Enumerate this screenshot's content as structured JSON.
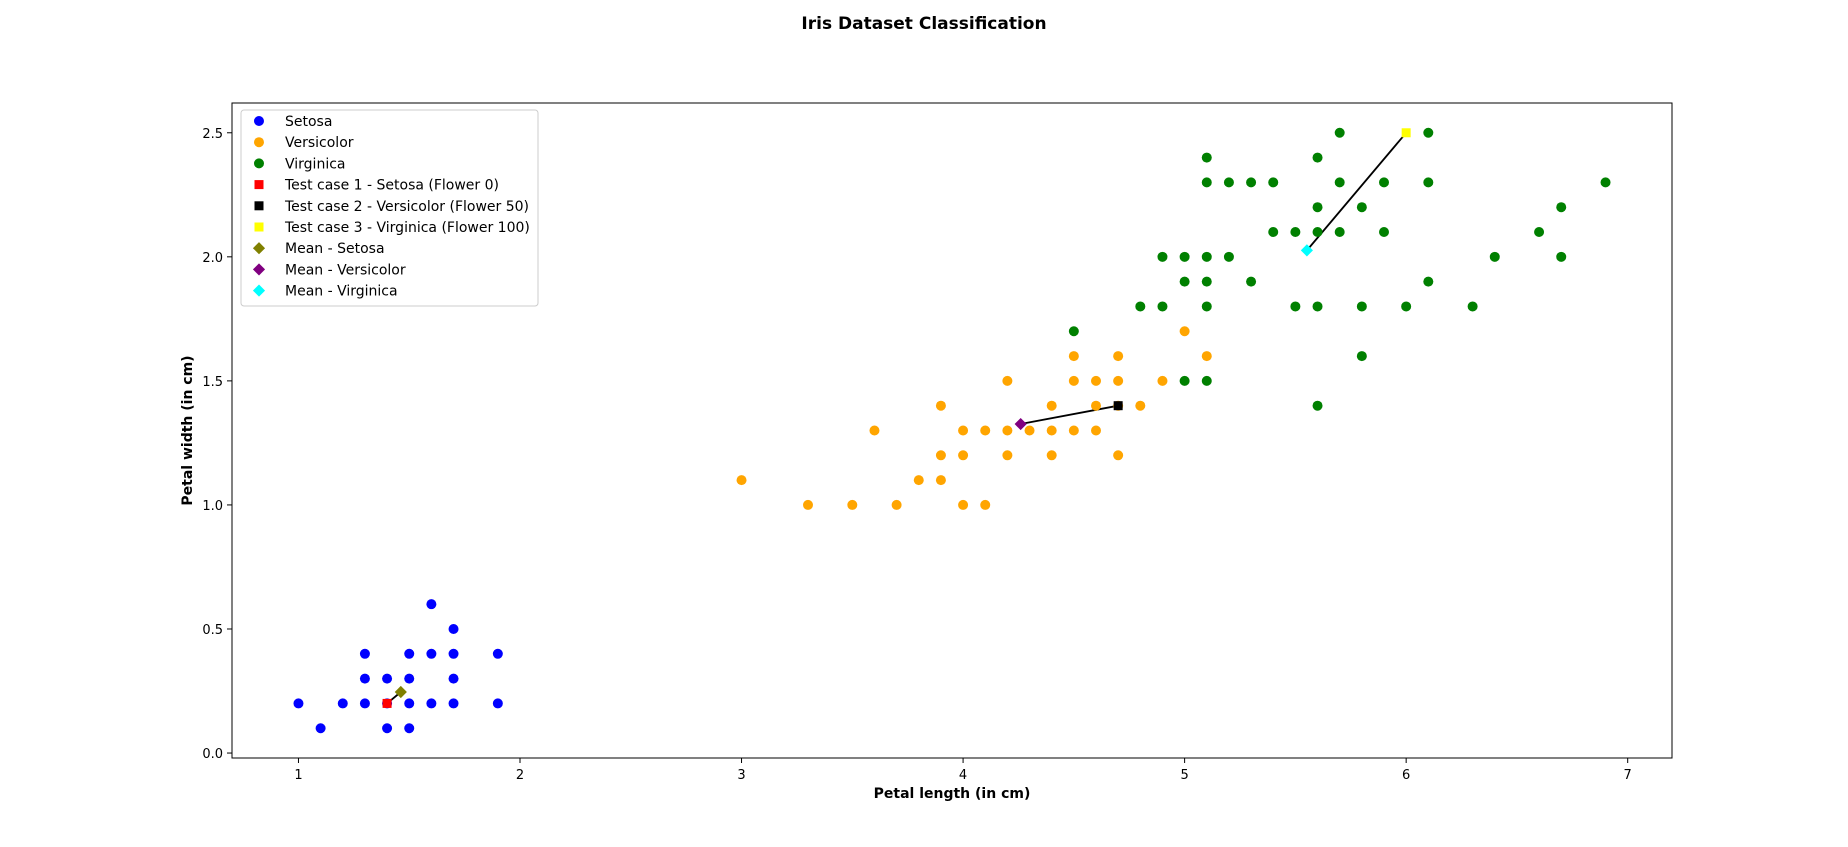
{
  "chart_data": {
    "type": "scatter",
    "title": "Iris Dataset Classification",
    "xlabel": "Petal length (in cm)",
    "ylabel": "Petal width (in cm)",
    "xlim": [
      0.7,
      7.2
    ],
    "ylim": [
      -0.02,
      2.62
    ],
    "xticks": [
      1,
      2,
      3,
      4,
      5,
      6,
      7
    ],
    "yticks": [
      0.0,
      0.5,
      1.0,
      1.5,
      2.0,
      2.5
    ],
    "grid": false,
    "legend_position": "top-left",
    "series": [
      {
        "name": "Setosa",
        "color": "#0000ff",
        "marker": "circle",
        "points": [
          [
            1.0,
            0.2
          ],
          [
            1.1,
            0.1
          ],
          [
            1.2,
            0.2
          ],
          [
            1.3,
            0.2
          ],
          [
            1.3,
            0.3
          ],
          [
            1.3,
            0.4
          ],
          [
            1.4,
            0.1
          ],
          [
            1.4,
            0.2
          ],
          [
            1.4,
            0.3
          ],
          [
            1.5,
            0.1
          ],
          [
            1.5,
            0.2
          ],
          [
            1.5,
            0.3
          ],
          [
            1.5,
            0.4
          ],
          [
            1.6,
            0.2
          ],
          [
            1.6,
            0.4
          ],
          [
            1.6,
            0.6
          ],
          [
            1.7,
            0.2
          ],
          [
            1.7,
            0.3
          ],
          [
            1.7,
            0.4
          ],
          [
            1.7,
            0.5
          ],
          [
            1.9,
            0.2
          ],
          [
            1.9,
            0.4
          ]
        ]
      },
      {
        "name": "Versicolor",
        "color": "#ffa500",
        "marker": "circle",
        "points": [
          [
            3.0,
            1.1
          ],
          [
            3.3,
            1.0
          ],
          [
            3.5,
            1.0
          ],
          [
            3.6,
            1.3
          ],
          [
            3.7,
            1.0
          ],
          [
            3.8,
            1.1
          ],
          [
            3.9,
            1.1
          ],
          [
            3.9,
            1.2
          ],
          [
            3.9,
            1.4
          ],
          [
            4.0,
            1.0
          ],
          [
            4.0,
            1.2
          ],
          [
            4.0,
            1.3
          ],
          [
            4.1,
            1.0
          ],
          [
            4.1,
            1.3
          ],
          [
            4.2,
            1.2
          ],
          [
            4.2,
            1.3
          ],
          [
            4.2,
            1.5
          ],
          [
            4.3,
            1.3
          ],
          [
            4.4,
            1.2
          ],
          [
            4.4,
            1.3
          ],
          [
            4.4,
            1.4
          ],
          [
            4.5,
            1.3
          ],
          [
            4.5,
            1.5
          ],
          [
            4.5,
            1.6
          ],
          [
            4.6,
            1.3
          ],
          [
            4.6,
            1.4
          ],
          [
            4.6,
            1.5
          ],
          [
            4.7,
            1.2
          ],
          [
            4.7,
            1.4
          ],
          [
            4.7,
            1.5
          ],
          [
            4.7,
            1.6
          ],
          [
            4.8,
            1.4
          ],
          [
            4.9,
            1.5
          ],
          [
            5.0,
            1.7
          ],
          [
            5.1,
            1.6
          ]
        ]
      },
      {
        "name": "Virginica",
        "color": "#008000",
        "marker": "circle",
        "points": [
          [
            4.5,
            1.7
          ],
          [
            4.8,
            1.8
          ],
          [
            4.9,
            1.8
          ],
          [
            4.9,
            2.0
          ],
          [
            5.0,
            1.5
          ],
          [
            5.0,
            1.9
          ],
          [
            5.0,
            2.0
          ],
          [
            5.1,
            1.5
          ],
          [
            5.1,
            1.8
          ],
          [
            5.1,
            1.9
          ],
          [
            5.1,
            2.0
          ],
          [
            5.1,
            2.3
          ],
          [
            5.1,
            2.4
          ],
          [
            5.2,
            2.0
          ],
          [
            5.2,
            2.3
          ],
          [
            5.3,
            1.9
          ],
          [
            5.3,
            2.3
          ],
          [
            5.4,
            2.1
          ],
          [
            5.4,
            2.3
          ],
          [
            5.5,
            1.8
          ],
          [
            5.5,
            2.1
          ],
          [
            5.6,
            1.4
          ],
          [
            5.6,
            1.8
          ],
          [
            5.6,
            2.1
          ],
          [
            5.6,
            2.2
          ],
          [
            5.6,
            2.4
          ],
          [
            5.7,
            2.1
          ],
          [
            5.7,
            2.3
          ],
          [
            5.7,
            2.5
          ],
          [
            5.8,
            1.6
          ],
          [
            5.8,
            1.8
          ],
          [
            5.8,
            2.2
          ],
          [
            5.9,
            2.1
          ],
          [
            5.9,
            2.3
          ],
          [
            6.0,
            1.8
          ],
          [
            6.1,
            1.9
          ],
          [
            6.1,
            2.3
          ],
          [
            6.1,
            2.5
          ],
          [
            6.3,
            1.8
          ],
          [
            6.4,
            2.0
          ],
          [
            6.6,
            2.1
          ],
          [
            6.7,
            2.0
          ],
          [
            6.7,
            2.2
          ],
          [
            6.9,
            2.3
          ]
        ]
      },
      {
        "name": "Test case 1 - Setosa (Flower 0)",
        "color": "#ff0000",
        "marker": "square",
        "points": [
          [
            1.4,
            0.2
          ]
        ]
      },
      {
        "name": "Test case 2 - Versicolor (Flower 50)",
        "color": "#000000",
        "marker": "square",
        "points": [
          [
            4.7,
            1.4
          ]
        ]
      },
      {
        "name": "Test case 3 - Virginica (Flower 100)",
        "color": "#ffff00",
        "marker": "square",
        "points": [
          [
            6.0,
            2.5
          ]
        ]
      },
      {
        "name": "Mean - Setosa",
        "color": "#808000",
        "marker": "diamond",
        "points": [
          [
            1.462,
            0.246
          ]
        ]
      },
      {
        "name": "Mean - Versicolor",
        "color": "#800080",
        "marker": "diamond",
        "points": [
          [
            4.26,
            1.326
          ]
        ]
      },
      {
        "name": "Mean - Virginica",
        "color": "#00ffff",
        "marker": "diamond",
        "points": [
          [
            5.552,
            2.026
          ]
        ]
      }
    ],
    "connector_lines": [
      {
        "from": [
          1.4,
          0.2
        ],
        "to": [
          1.462,
          0.246
        ],
        "color": "#000000"
      },
      {
        "from": [
          4.7,
          1.4
        ],
        "to": [
          4.26,
          1.326
        ],
        "color": "#000000"
      },
      {
        "from": [
          6.0,
          2.5
        ],
        "to": [
          5.552,
          2.026
        ],
        "color": "#000000"
      }
    ]
  }
}
